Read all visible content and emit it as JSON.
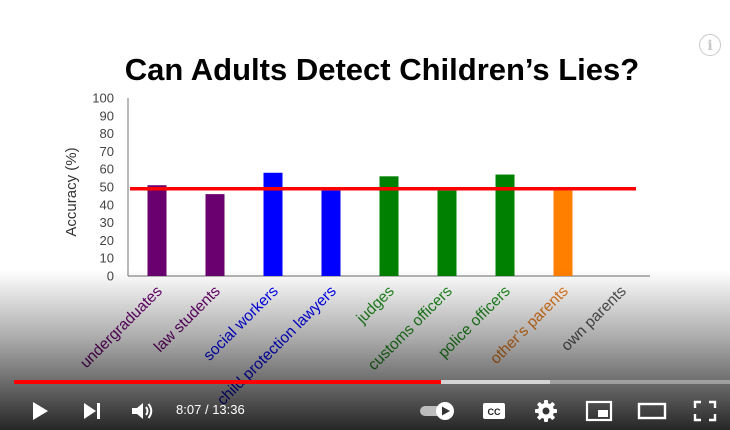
{
  "player": {
    "time_current": "8:07",
    "time_separator": "/",
    "time_total": "13:36",
    "progress_played_fraction": 0.597,
    "progress_buffered_fraction": 0.749,
    "icons": [
      "info-icon",
      "play-icon",
      "next-icon",
      "volume-icon",
      "autoplay-toggle-icon",
      "captions-icon",
      "settings-icon",
      "miniplayer-icon",
      "theater-mode-icon",
      "fullscreen-icon"
    ],
    "colors": {
      "progress": "#ff0000",
      "controls": "#ffffff"
    }
  },
  "chart_data": {
    "type": "bar",
    "title": "Can Adults Detect Children’s Lies?",
    "xlabel": "",
    "ylabel": "Accuracy (%)",
    "ylim": [
      0,
      100
    ],
    "yticks": [
      0,
      10,
      20,
      30,
      40,
      50,
      60,
      70,
      80,
      90,
      100
    ],
    "categories": [
      "undergraduates",
      "law students",
      "social workers",
      "child protection lawyers",
      "judges",
      "customs officers",
      "police officers",
      "other’s parents",
      "own parents"
    ],
    "values": [
      51,
      46,
      58,
      48,
      56,
      48,
      57,
      48,
      null
    ],
    "bar_colors": [
      "#6a0070",
      "#6a0070",
      "#0000ff",
      "#0000ff",
      "#008000",
      "#008000",
      "#008000",
      "#ff7f00",
      null
    ],
    "label_colors": [
      "#6a0070",
      "#6a0070",
      "#0000ff",
      "#0000ff",
      "#1f8f1f",
      "#1f8f1f",
      "#1f8f1f",
      "#e87a1a",
      "#555555"
    ],
    "reference_line": {
      "value": 49,
      "color": "#ff0000"
    },
    "grid": false
  }
}
